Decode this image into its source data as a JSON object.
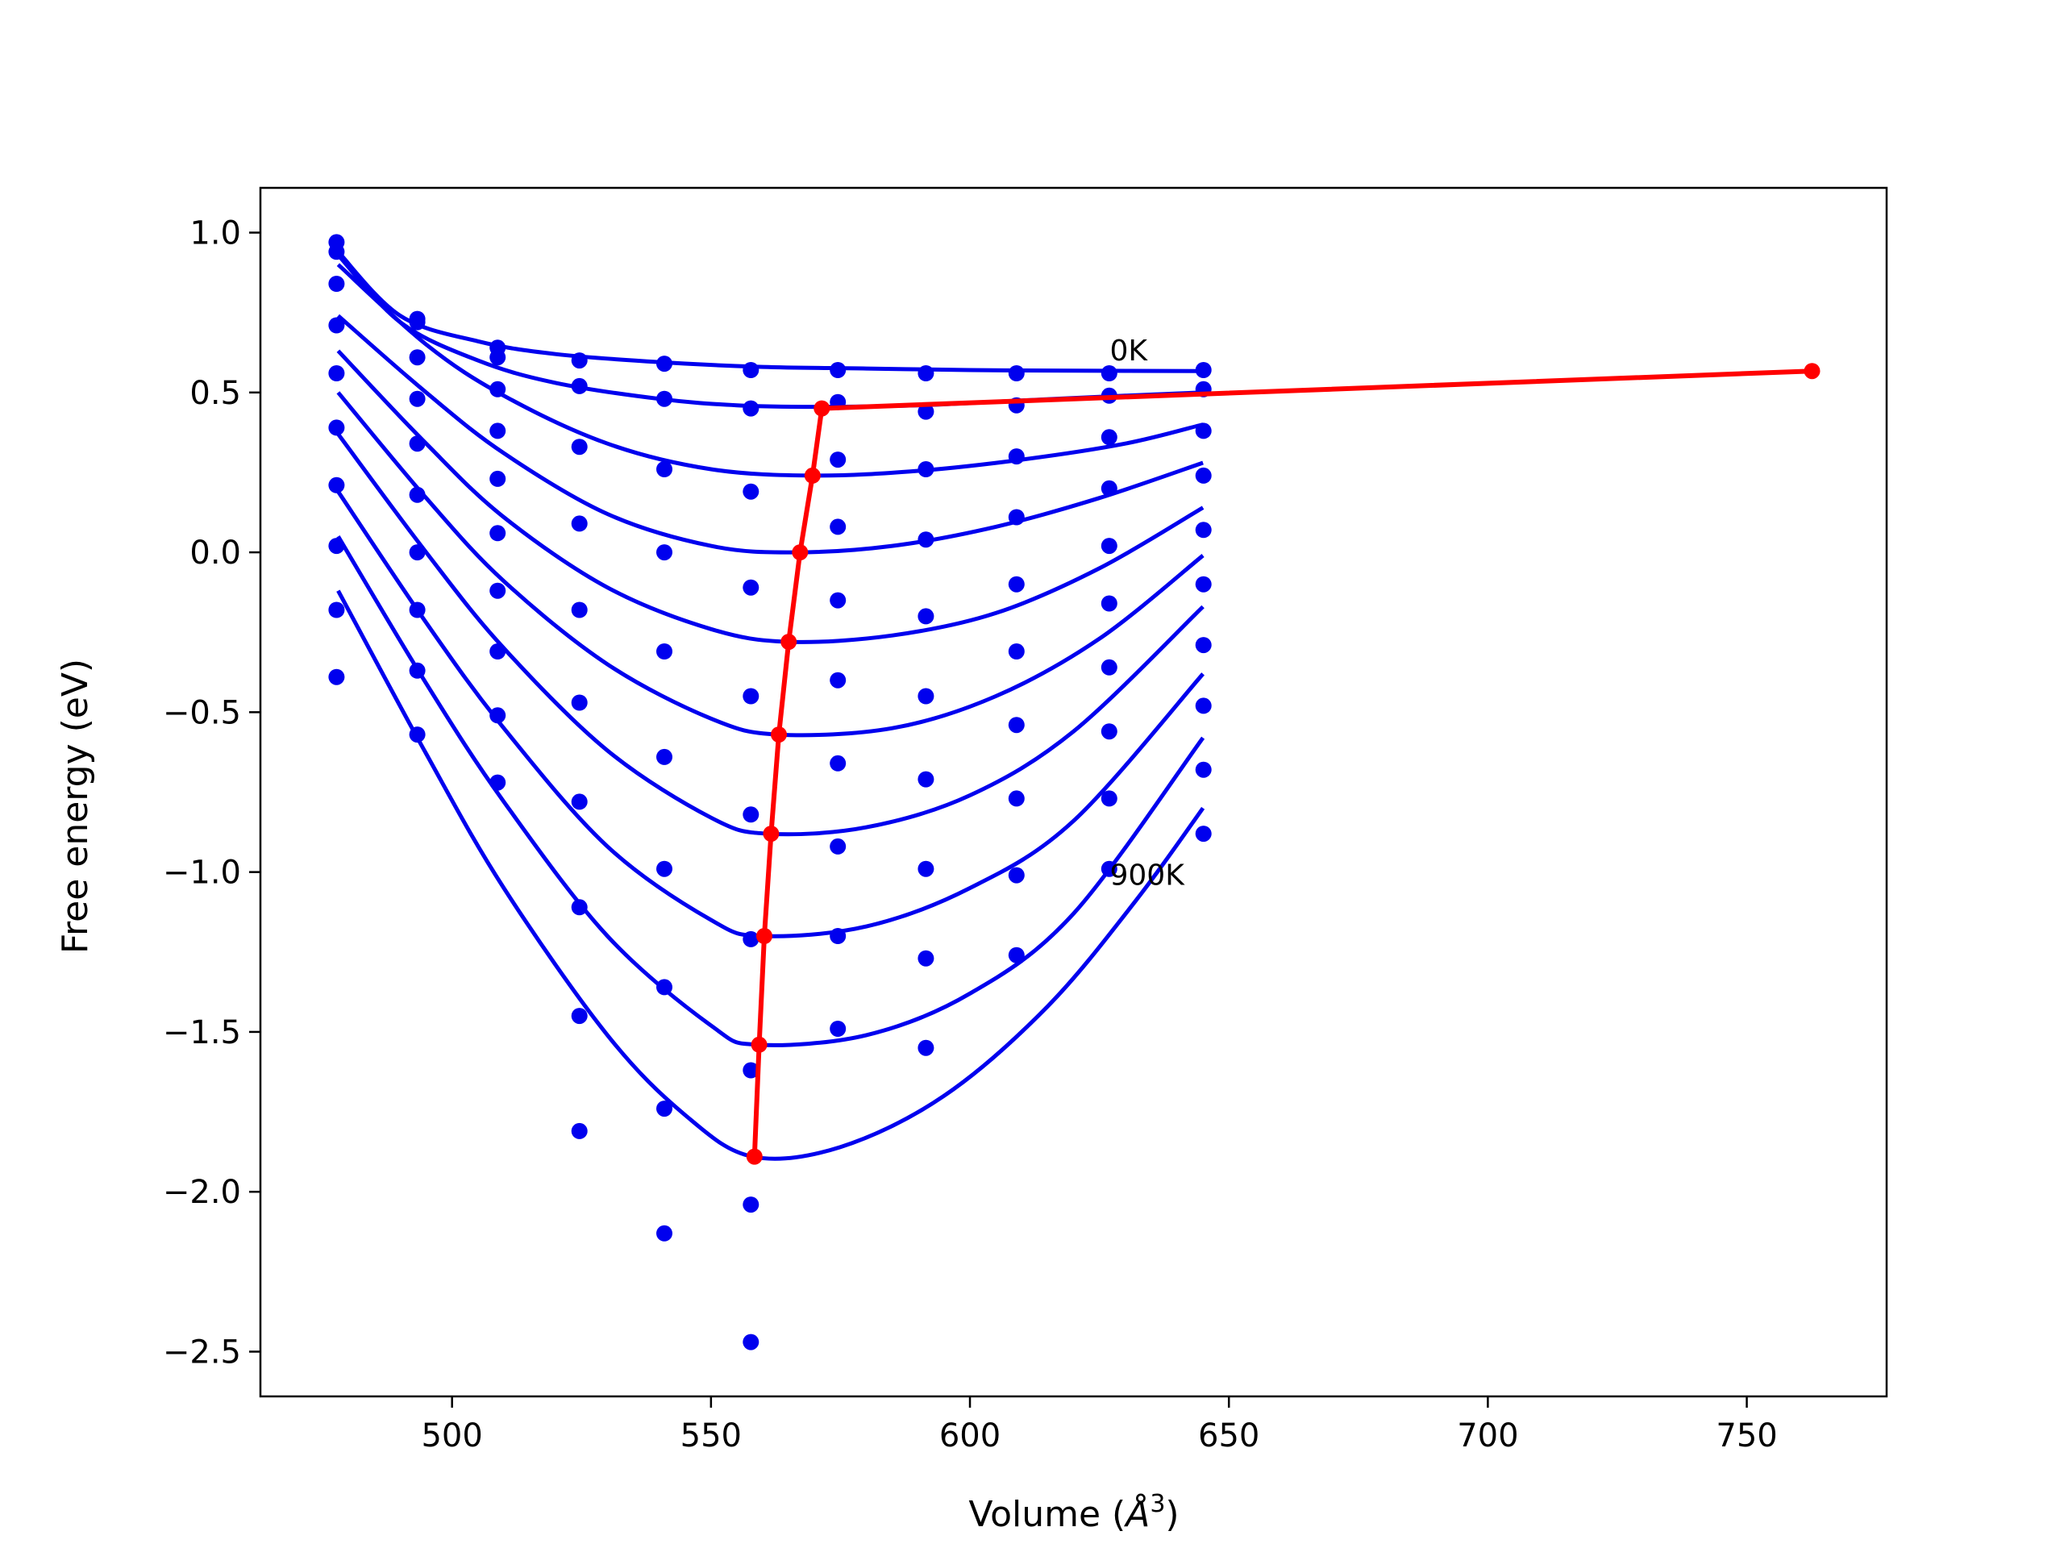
{
  "chart_data": {
    "type": "scatter",
    "title": "",
    "xlabel_main": "Volume (",
    "xlabel_unit_base": "Å",
    "xlabel_unit_exp": "3",
    "xlabel_close": ")",
    "ylabel": "Free energy (eV)",
    "xlim": [
      463,
      777
    ],
    "ylim": [
      -2.64,
      1.14
    ],
    "xticks": [
      500,
      550,
      600,
      650,
      700,
      750
    ],
    "yticks": [
      1.0,
      0.5,
      0.0,
      -0.5,
      -1.0,
      -1.5,
      -2.0,
      -2.5
    ],
    "xtick_labels": [
      "500",
      "550",
      "600",
      "650",
      "700",
      "750"
    ],
    "ytick_labels": [
      "1.0",
      "0.5",
      "0.0",
      "−0.5",
      "−1.0",
      "−1.5",
      "−2.0",
      "−2.5"
    ],
    "annotations": [
      {
        "text": "0K",
        "x": 627,
        "y": 0.6
      },
      {
        "text": "900K",
        "x": 627,
        "y": -1.04
      }
    ],
    "colors": {
      "points": "#0000ee",
      "fit_curves": "#0000ee",
      "minimum_line": "#ff0000",
      "frame": "#000000"
    },
    "volumes": [
      477.7,
      493.3,
      508.8,
      524.6,
      541.0,
      557.7,
      574.5,
      591.5,
      609.0,
      626.9,
      645.1
    ],
    "scatter_series": [
      {
        "values": [
          0.97,
          0.73,
          0.64,
          0.6,
          0.59,
          0.57,
          0.57,
          0.56,
          0.56,
          0.56,
          0.57
        ]
      },
      {
        "values": [
          0.94,
          0.72,
          0.61,
          0.52,
          0.48,
          0.45,
          0.47,
          0.44,
          0.46,
          0.49,
          0.51
        ]
      },
      {
        "values": [
          0.84,
          0.61,
          0.51,
          0.33,
          0.26,
          0.19,
          0.29,
          0.26,
          0.3,
          0.36,
          0.38
        ]
      },
      {
        "values": [
          0.71,
          0.48,
          0.38,
          0.09,
          0.0,
          -0.11,
          0.08,
          0.04,
          0.11,
          0.2,
          0.24
        ]
      },
      {
        "values": [
          0.56,
          0.34,
          0.23,
          -0.18,
          -0.31,
          -0.45,
          -0.15,
          -0.2,
          -0.1,
          0.02,
          0.07
        ]
      },
      {
        "values": [
          0.39,
          0.18,
          0.06,
          -0.47,
          -0.64,
          -0.82,
          -0.4,
          -0.45,
          -0.31,
          -0.16,
          -0.1
        ]
      },
      {
        "values": [
          0.21,
          0.0,
          -0.12,
          -0.78,
          -0.99,
          -1.21,
          -0.66,
          -0.71,
          -0.54,
          -0.36,
          -0.29
        ]
      },
      {
        "values": [
          0.02,
          -0.18,
          -0.31,
          -1.11,
          -1.36,
          -1.62,
          -0.92,
          -0.99,
          -0.77,
          -0.56,
          -0.48
        ]
      },
      {
        "values": [
          -0.18,
          -0.37,
          -0.51,
          -1.45,
          -1.74,
          -2.04,
          -1.2,
          -1.27,
          -1.01,
          -0.77,
          -0.68
        ]
      },
      {
        "values": [
          -0.39,
          -0.57,
          -0.72,
          -1.81,
          -2.13,
          -2.47,
          -1.49,
          -1.55,
          -1.26,
          -0.99,
          -0.88
        ]
      }
    ],
    "fit_curves": [
      {
        "x_range": [
          478,
          645
        ],
        "points": [
          [
            478,
            0.94
          ],
          [
            490,
            0.74
          ],
          [
            505,
            0.66
          ],
          [
            520,
            0.62
          ],
          [
            540,
            0.595
          ],
          [
            560,
            0.58
          ],
          [
            580,
            0.575
          ],
          [
            600,
            0.57
          ],
          [
            620,
            0.568
          ],
          [
            645,
            0.567
          ]
        ]
      },
      {
        "x_range": [
          478,
          645
        ],
        "points": [
          [
            478,
            0.93
          ],
          [
            490,
            0.72
          ],
          [
            505,
            0.6
          ],
          [
            520,
            0.53
          ],
          [
            540,
            0.48
          ],
          [
            555,
            0.46
          ],
          [
            570,
            0.455
          ],
          [
            590,
            0.46
          ],
          [
            610,
            0.475
          ],
          [
            630,
            0.49
          ],
          [
            645,
            0.5
          ]
        ]
      },
      {
        "x_range": [
          478,
          645
        ],
        "points": [
          [
            478,
            0.9
          ],
          [
            495,
            0.65
          ],
          [
            510,
            0.49
          ],
          [
            530,
            0.34
          ],
          [
            550,
            0.26
          ],
          [
            570,
            0.24
          ],
          [
            590,
            0.255
          ],
          [
            610,
            0.29
          ],
          [
            630,
            0.34
          ],
          [
            645,
            0.4
          ]
        ]
      },
      {
        "x_range": [
          478,
          645
        ],
        "points": [
          [
            478,
            0.74
          ],
          [
            495,
            0.5
          ],
          [
            510,
            0.31
          ],
          [
            530,
            0.12
          ],
          [
            550,
            0.02
          ],
          [
            566,
            0.0
          ],
          [
            585,
            0.02
          ],
          [
            605,
            0.08
          ],
          [
            625,
            0.17
          ],
          [
            645,
            0.28
          ]
        ]
      },
      {
        "x_range": [
          478,
          645
        ],
        "points": [
          [
            478,
            0.63
          ],
          [
            495,
            0.34
          ],
          [
            510,
            0.11
          ],
          [
            530,
            -0.11
          ],
          [
            550,
            -0.24
          ],
          [
            565,
            -0.28
          ],
          [
            585,
            -0.26
          ],
          [
            605,
            -0.19
          ],
          [
            625,
            -0.05
          ],
          [
            645,
            0.14
          ]
        ]
      },
      {
        "x_range": [
          478,
          645
        ],
        "points": [
          [
            478,
            0.5
          ],
          [
            495,
            0.17
          ],
          [
            510,
            -0.09
          ],
          [
            530,
            -0.35
          ],
          [
            550,
            -0.52
          ],
          [
            563,
            -0.57
          ],
          [
            585,
            -0.55
          ],
          [
            605,
            -0.45
          ],
          [
            625,
            -0.27
          ],
          [
            645,
            -0.01
          ]
        ]
      },
      {
        "x_range": [
          478,
          645
        ],
        "points": [
          [
            478,
            0.37
          ],
          [
            495,
            0.0
          ],
          [
            510,
            -0.3
          ],
          [
            530,
            -0.62
          ],
          [
            550,
            -0.83
          ],
          [
            561,
            -0.88
          ],
          [
            580,
            -0.86
          ],
          [
            600,
            -0.76
          ],
          [
            620,
            -0.56
          ],
          [
            645,
            -0.17
          ]
        ]
      },
      {
        "x_range": [
          478,
          645
        ],
        "points": [
          [
            478,
            0.19
          ],
          [
            495,
            -0.22
          ],
          [
            510,
            -0.55
          ],
          [
            530,
            -0.92
          ],
          [
            550,
            -1.15
          ],
          [
            560,
            -1.2
          ],
          [
            580,
            -1.17
          ],
          [
            600,
            -1.05
          ],
          [
            620,
            -0.84
          ],
          [
            645,
            -0.38
          ]
        ]
      },
      {
        "x_range": [
          478,
          645
        ],
        "points": [
          [
            478,
            0.05
          ],
          [
            495,
            -0.41
          ],
          [
            510,
            -0.78
          ],
          [
            530,
            -1.2
          ],
          [
            550,
            -1.48
          ],
          [
            559,
            -1.54
          ],
          [
            580,
            -1.51
          ],
          [
            600,
            -1.38
          ],
          [
            620,
            -1.13
          ],
          [
            645,
            -0.58
          ]
        ]
      },
      {
        "x_range": [
          478,
          645
        ],
        "points": [
          [
            478,
            -0.12
          ],
          [
            495,
            -0.63
          ],
          [
            510,
            -1.05
          ],
          [
            530,
            -1.51
          ],
          [
            545,
            -1.76
          ],
          [
            558,
            -1.89
          ],
          [
            575,
            -1.86
          ],
          [
            595,
            -1.7
          ],
          [
            615,
            -1.42
          ],
          [
            632,
            -1.09
          ],
          [
            645,
            -0.8
          ]
        ]
      }
    ],
    "minimum_line": {
      "x": [
        558.4,
        559.3,
        560.3,
        561.6,
        563.1,
        565.0,
        567.2,
        569.6,
        571.4,
        762.6
      ],
      "y": [
        -1.89,
        -1.54,
        -1.2,
        -0.88,
        -0.57,
        -0.28,
        0.0,
        0.24,
        0.45,
        0.567
      ]
    }
  }
}
